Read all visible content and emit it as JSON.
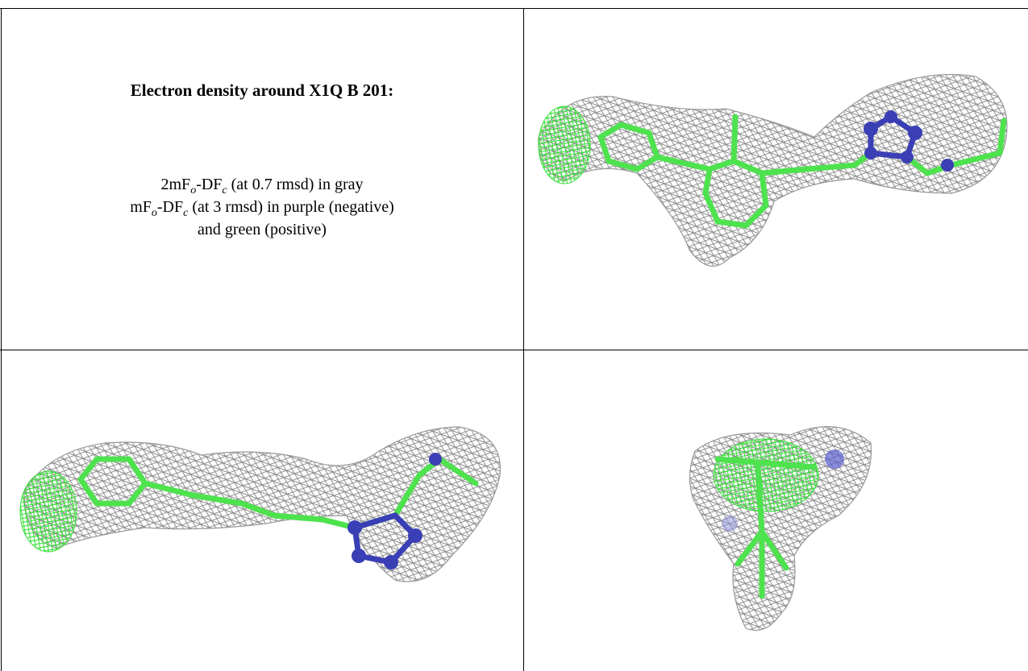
{
  "title": "Electron density around X1Q B 201:",
  "legend": {
    "line1": [
      "2mF",
      "o",
      "-DF",
      "c",
      " (at 0.7 rmsd) in gray"
    ],
    "line2": [
      "mF",
      "o",
      "-DF",
      "c",
      " (at 3 rmsd) in purple (negative)"
    ],
    "line3": "and green (positive)"
  }
}
